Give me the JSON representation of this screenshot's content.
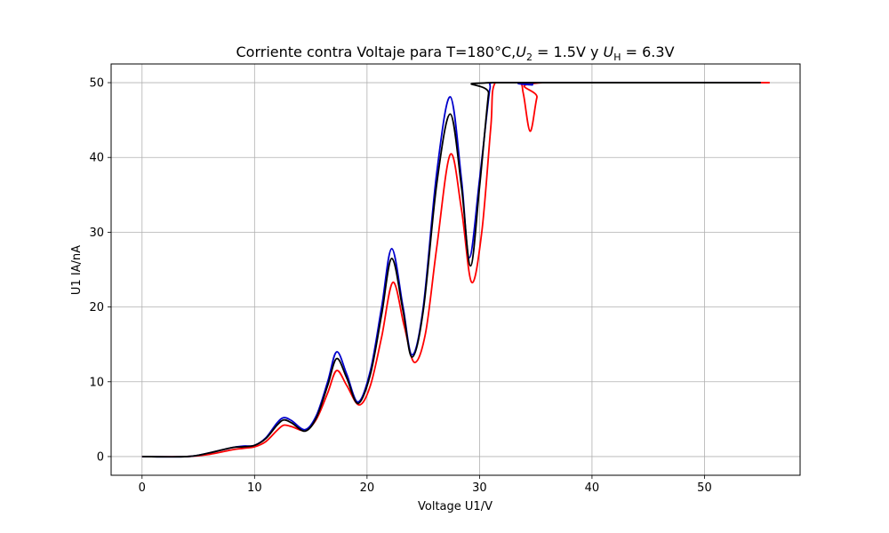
{
  "chart_data": {
    "type": "line",
    "title_parts": {
      "prefix": "Corriente contra Voltaje para T=180°C,",
      "u2_symbol": "U",
      "u2_sub": "2",
      "u2_value": " = 1.5V y ",
      "uh_symbol": "U",
      "uh_sub": "H",
      "uh_value": " = 6.3V"
    },
    "xlabel": "Voltage U1/V",
    "ylabel": "U1 IA/nA",
    "xlim": [
      -2.75,
      58.5
    ],
    "ylim": [
      -2.5,
      52.5
    ],
    "xticks": [
      0,
      10,
      20,
      30,
      40,
      50
    ],
    "yticks": [
      0,
      10,
      20,
      30,
      40,
      50
    ],
    "grid": true,
    "series": [
      {
        "color": "#ff0000",
        "x": [
          0,
          4,
          6,
          8,
          9,
          10,
          11,
          12,
          12.6,
          13.3,
          14.5,
          15.5,
          16.5,
          17.3,
          18.2,
          19.3,
          20.3,
          21.3,
          22.3,
          23.3,
          24.2,
          25.2,
          26.2,
          27.4,
          28.4,
          29.3,
          30.2,
          31.0,
          31.4,
          33.5,
          33.9,
          34.5,
          35.1,
          35.6,
          55.8
        ],
        "y": [
          0,
          0,
          0.3,
          0.9,
          1.1,
          1.3,
          2.0,
          3.5,
          4.2,
          4.0,
          3.5,
          5.0,
          8.5,
          11.5,
          9.5,
          6.9,
          9.5,
          16.0,
          23.3,
          17.5,
          12.6,
          16.5,
          28.0,
          40.4,
          33.0,
          23.3,
          30.0,
          44.0,
          50.0,
          50.0,
          48.5,
          43.5,
          48.0,
          50.0,
          50.0
        ]
      },
      {
        "color": "#0000cc",
        "x": [
          0,
          4,
          6,
          8,
          9,
          10,
          11,
          12,
          12.6,
          13.3,
          14.5,
          15.5,
          16.5,
          17.3,
          18.2,
          19.2,
          20.3,
          21.3,
          22.2,
          23.2,
          24.0,
          25.0,
          26.2,
          27.4,
          28.4,
          29.1,
          30.0,
          30.9,
          31.2,
          34.4,
          34.7,
          35.0,
          55.0
        ],
        "y": [
          0,
          0,
          0.5,
          1.2,
          1.4,
          1.5,
          2.5,
          4.5,
          5.2,
          4.8,
          3.6,
          5.5,
          10.0,
          14.0,
          11.0,
          7.3,
          11.5,
          20.0,
          27.8,
          20.0,
          13.6,
          20.0,
          38.0,
          48.1,
          37.0,
          26.6,
          37.0,
          49.0,
          50.0,
          50.0,
          49.7,
          50.0,
          50.0
        ]
      },
      {
        "color": "#000000",
        "x": [
          0,
          4,
          6,
          8,
          9,
          10,
          11,
          12,
          12.6,
          13.3,
          14.5,
          15.5,
          16.5,
          17.3,
          18.2,
          19.2,
          20.3,
          21.3,
          22.2,
          23.2,
          24.0,
          25.0,
          26.2,
          27.4,
          28.4,
          29.2,
          30.0,
          30.8,
          31.1,
          55.0
        ],
        "y": [
          0,
          0,
          0.5,
          1.2,
          1.3,
          1.5,
          2.4,
          4.2,
          4.9,
          4.5,
          3.4,
          5.2,
          9.5,
          13.1,
          10.5,
          7.1,
          11.0,
          19.0,
          26.5,
          19.5,
          13.3,
          19.5,
          36.5,
          45.8,
          36.0,
          25.5,
          36.0,
          48.5,
          50.0,
          50.0
        ]
      }
    ]
  }
}
